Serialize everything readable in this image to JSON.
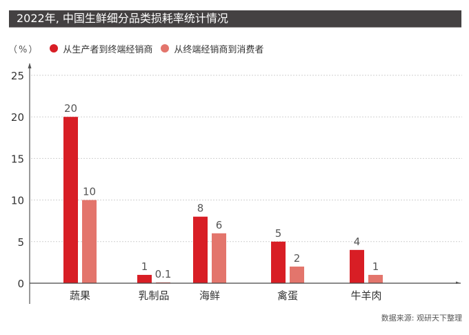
{
  "title": "2022年, 中国生鲜细分品类损耗率统计情况",
  "source": "数据来源: 观研天下整理",
  "colors": {
    "title_bg": "#444142",
    "series1": "#d81e25",
    "series2": "#e3756c"
  },
  "chart_data": {
    "type": "bar",
    "title": "2022年, 中国生鲜细分品类损耗率统计情况",
    "ylabel": "（%）",
    "xlabel": "",
    "ylim": [
      0,
      25
    ],
    "yticks": [
      "0",
      "5",
      "10",
      "15",
      "20",
      "25"
    ],
    "ytick_values": [
      0,
      5,
      10,
      15,
      20,
      25
    ],
    "grid": true,
    "legend_position": "top-left",
    "categories": [
      "蔬果",
      "乳制品",
      "海鲜",
      "禽蛋",
      "牛羊肉"
    ],
    "series": [
      {
        "name": "从生产者到终端经销商",
        "values": [
          20,
          1,
          8,
          5,
          4
        ],
        "labels": [
          "20",
          "1",
          "8",
          "5",
          "4"
        ]
      },
      {
        "name": "从终端经销商到消费者",
        "values": [
          10,
          0.1,
          6,
          2,
          1
        ],
        "labels": [
          "10",
          "0.1",
          "6",
          "2",
          "1"
        ]
      }
    ]
  }
}
